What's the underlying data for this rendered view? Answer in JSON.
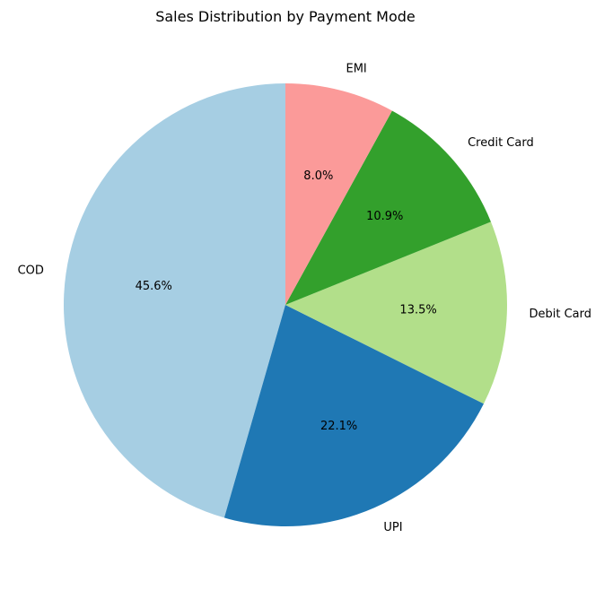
{
  "chart_data": {
    "type": "pie",
    "title": "Sales Distribution by Payment Mode",
    "start_angle_deg": 90,
    "direction": "counterclockwise",
    "slices": [
      {
        "label": "COD",
        "value": 45.6,
        "pct_label": "45.6%",
        "color": "#a6cee3"
      },
      {
        "label": "UPI",
        "value": 22.1,
        "pct_label": "22.1%",
        "color": "#1f78b4"
      },
      {
        "label": "Debit Card",
        "value": 13.5,
        "pct_label": "13.5%",
        "color": "#b2df8a"
      },
      {
        "label": "Credit Card",
        "value": 10.9,
        "pct_label": "10.9%",
        "color": "#33a02c"
      },
      {
        "label": "EMI",
        "value": 8.0,
        "pct_label": "8.0%",
        "color": "#fb9a99"
      }
    ]
  }
}
